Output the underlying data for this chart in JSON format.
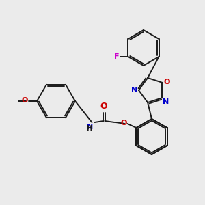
{
  "background_color": "#ebebeb",
  "bond_color": "#1a1a1a",
  "atom_colors": {
    "O": "#cc0000",
    "N": "#0000cc",
    "F": "#cc00cc",
    "C": "#1a1a1a"
  },
  "figsize": [
    3.0,
    3.0
  ],
  "dpi": 100,
  "lw": 1.4,
  "fs": 8.0
}
